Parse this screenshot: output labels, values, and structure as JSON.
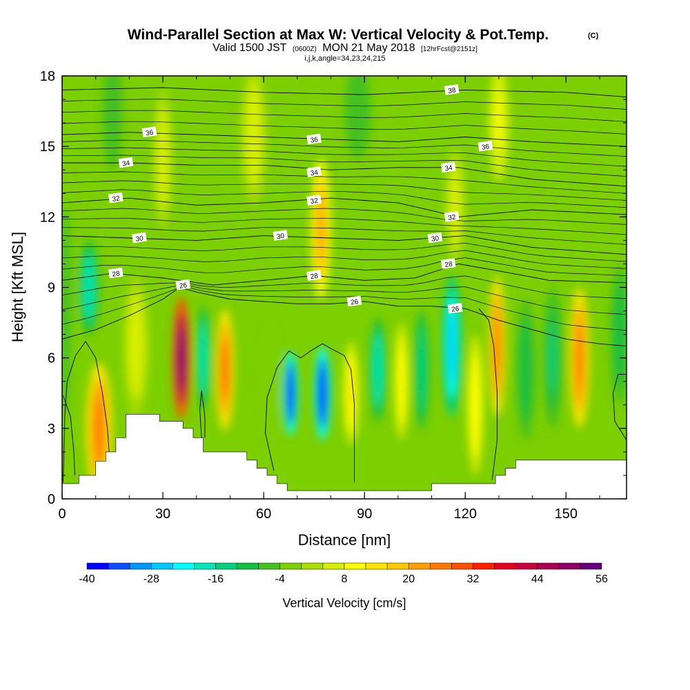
{
  "header": {
    "title_main": "Wind-Parallel Section at Max W: Vertical Velocity & Pot.Temp.",
    "title_mark": "(C)",
    "subtitle_valid": "Valid 1500 JST",
    "subtitle_z": "(0600Z)",
    "subtitle_date": "MON 21 May 2018",
    "subtitle_fcst": "[12hrFcst@2151z]",
    "indices": "i,j,k,angle=34,23,24,215"
  },
  "chart_data": {
    "type": "heatmap",
    "xlabel": "Distance [nm]",
    "ylabel": "Height [Kft MSL]",
    "xlim": [
      0,
      168
    ],
    "ylim": [
      0,
      18
    ],
    "xticks": [
      "0",
      "30",
      "60",
      "90",
      "120",
      "150"
    ],
    "yticks": [
      "0",
      "3",
      "6",
      "9",
      "12",
      "15",
      "18"
    ],
    "background_value": -2,
    "bands": [
      {
        "x": 1,
        "w": 3,
        "ycen": 8.0,
        "h": 6,
        "v": -6
      },
      {
        "x": 8,
        "w": 3,
        "ycen": 9.0,
        "h": 2.0,
        "v": -20
      },
      {
        "x": 11,
        "w": 4,
        "ycen": 3.0,
        "h": 2.8,
        "v": 24
      },
      {
        "x": 22,
        "w": 4,
        "ycen": 6.5,
        "h": 3,
        "v": 6
      },
      {
        "x": 35.5,
        "w": 2.6,
        "ycen": 6.0,
        "h": 2.6,
        "v": 56
      },
      {
        "x": 42,
        "w": 2.2,
        "ycen": 6.0,
        "h": 2.2,
        "v": -20
      },
      {
        "x": 48.5,
        "w": 2.8,
        "ycen": 5.5,
        "h": 2.6,
        "v": 28
      },
      {
        "x": 62,
        "w": 3,
        "ycen": 5.0,
        "h": 2.5,
        "v": -4
      },
      {
        "x": 68,
        "w": 2.2,
        "ycen": 4.5,
        "h": 1.8,
        "v": -38
      },
      {
        "x": 77.5,
        "w": 2.5,
        "ycen": 4.5,
        "h": 2.0,
        "v": -40
      },
      {
        "x": 77,
        "w": 3,
        "ycen": 11.5,
        "h": 3,
        "v": 20
      },
      {
        "x": 86,
        "w": 2.5,
        "ycen": 4.5,
        "h": 2.2,
        "v": 14
      },
      {
        "x": 94,
        "w": 2.5,
        "ycen": 5.5,
        "h": 2.2,
        "v": -20
      },
      {
        "x": 101,
        "w": 2.2,
        "ycen": 5.0,
        "h": 2.5,
        "v": 10
      },
      {
        "x": 107,
        "w": 2.2,
        "ycen": 5.5,
        "h": 2.5,
        "v": -16
      },
      {
        "x": 116,
        "w": 3,
        "ycen": 6.5,
        "h": 3,
        "v": -26
      },
      {
        "x": 117,
        "w": 3,
        "ycen": 12.5,
        "h": 2.5,
        "v": 6
      },
      {
        "x": 123,
        "w": 2.5,
        "ycen": 4.0,
        "h": 3,
        "v": 10
      },
      {
        "x": 129.5,
        "w": 2.5,
        "ycen": 6.5,
        "h": 3,
        "v": 24
      },
      {
        "x": 138,
        "w": 3,
        "ycen": 5.5,
        "h": 3,
        "v": -10
      },
      {
        "x": 146,
        "w": 3,
        "ycen": 6.0,
        "h": 3,
        "v": -14
      },
      {
        "x": 154,
        "w": 3,
        "ycen": 6.0,
        "h": 3,
        "v": 24
      },
      {
        "x": 166,
        "w": 3,
        "ycen": 7.0,
        "h": 3,
        "v": -12
      },
      {
        "x": 15,
        "w": 3,
        "ycen": 16.5,
        "h": 2.5,
        "v": -8
      },
      {
        "x": 30,
        "w": 3,
        "ycen": 14.5,
        "h": 3,
        "v": 6
      },
      {
        "x": 57,
        "w": 4,
        "ycen": 15.5,
        "h": 3,
        "v": 6
      },
      {
        "x": 130,
        "w": 3,
        "ycen": 16.0,
        "h": 2.5,
        "v": 8
      },
      {
        "x": 88,
        "w": 4,
        "ycen": 16.5,
        "h": 2,
        "v": -8
      }
    ],
    "terrain": [
      [
        0,
        0.65
      ],
      [
        5,
        0.65
      ],
      [
        5,
        1.0
      ],
      [
        10,
        1.0
      ],
      [
        10,
        1.6
      ],
      [
        13,
        1.6
      ],
      [
        13,
        2.0
      ],
      [
        16,
        2.0
      ],
      [
        16,
        2.6
      ],
      [
        19,
        2.6
      ],
      [
        19,
        3.6
      ],
      [
        29,
        3.6
      ],
      [
        29,
        3.3
      ],
      [
        36,
        3.3
      ],
      [
        36,
        3.0
      ],
      [
        39,
        3.0
      ],
      [
        39,
        2.6
      ],
      [
        42,
        2.6
      ],
      [
        42,
        2.0
      ],
      [
        55,
        2.0
      ],
      [
        55,
        1.65
      ],
      [
        58,
        1.65
      ],
      [
        58,
        1.3
      ],
      [
        61,
        1.3
      ],
      [
        61,
        1.0
      ],
      [
        64,
        1.0
      ],
      [
        64,
        0.65
      ],
      [
        67,
        0.65
      ],
      [
        67,
        0.35
      ],
      [
        110,
        0.35
      ],
      [
        110,
        0.65
      ],
      [
        129,
        0.65
      ],
      [
        129,
        1.0
      ],
      [
        132,
        1.0
      ],
      [
        132,
        1.3
      ],
      [
        135,
        1.3
      ],
      [
        135,
        1.65
      ],
      [
        168,
        1.65
      ]
    ],
    "isentropes": [
      {
        "label": "26",
        "pts": [
          [
            0,
            6.8
          ],
          [
            10,
            7.2
          ],
          [
            20,
            7.8
          ],
          [
            30,
            8.5
          ],
          [
            35,
            9.0
          ],
          [
            40,
            8.8
          ],
          [
            50,
            8.5
          ],
          [
            60,
            8.4
          ],
          [
            70,
            8.3
          ],
          [
            80,
            8.3
          ],
          [
            90,
            8.4
          ],
          [
            100,
            8.2
          ],
          [
            110,
            8.2
          ],
          [
            120,
            8.1
          ],
          [
            130,
            7.6
          ],
          [
            140,
            7.2
          ],
          [
            150,
            6.8
          ],
          [
            160,
            6.6
          ],
          [
            168,
            6.5
          ]
        ]
      },
      {
        "label": "28",
        "pts": [
          [
            0,
            9.3
          ],
          [
            15,
            9.6
          ],
          [
            30,
            9.4
          ],
          [
            45,
            9.1
          ],
          [
            60,
            9.3
          ],
          [
            75,
            9.5
          ],
          [
            90,
            9.3
          ],
          [
            105,
            9.4
          ],
          [
            118,
            10.0
          ],
          [
            130,
            9.7
          ],
          [
            145,
            9.3
          ],
          [
            168,
            9.2
          ]
        ]
      },
      {
        "label": "30",
        "pts": [
          [
            0,
            11.2
          ],
          [
            20,
            11.1
          ],
          [
            40,
            11.0
          ],
          [
            60,
            11.2
          ],
          [
            80,
            11.1
          ],
          [
            100,
            11.0
          ],
          [
            120,
            11.2
          ],
          [
            140,
            10.7
          ],
          [
            168,
            10.4
          ]
        ]
      },
      {
        "label": "32",
        "pts": [
          [
            0,
            12.6
          ],
          [
            20,
            12.8
          ],
          [
            40,
            12.5
          ],
          [
            60,
            12.6
          ],
          [
            80,
            12.8
          ],
          [
            100,
            12.6
          ],
          [
            118,
            12.0
          ],
          [
            140,
            12.3
          ],
          [
            168,
            12.1
          ]
        ]
      },
      {
        "label": "34",
        "pts": [
          [
            0,
            14.3
          ],
          [
            20,
            14.3
          ],
          [
            40,
            14.2
          ],
          [
            60,
            14.2
          ],
          [
            80,
            14.0
          ],
          [
            100,
            14.1
          ],
          [
            118,
            14.1
          ],
          [
            140,
            13.6
          ],
          [
            168,
            13.3
          ]
        ]
      },
      {
        "label": "36",
        "pts": [
          [
            0,
            15.5
          ],
          [
            20,
            15.6
          ],
          [
            40,
            15.5
          ],
          [
            60,
            15.4
          ],
          [
            80,
            15.3
          ],
          [
            100,
            15.2
          ],
          [
            120,
            15.4
          ],
          [
            140,
            15.2
          ],
          [
            168,
            15.0
          ]
        ]
      },
      {
        "label": "38",
        "pts": [
          [
            0,
            17.4
          ],
          [
            30,
            17.5
          ],
          [
            60,
            17.3
          ],
          [
            90,
            17.2
          ],
          [
            120,
            17.4
          ],
          [
            150,
            17.3
          ],
          [
            168,
            17.1
          ]
        ]
      }
    ],
    "isentrope_labels": [
      {
        "label": "26",
        "x": 36,
        "y": 9.1
      },
      {
        "label": "26",
        "x": 87,
        "y": 8.4
      },
      {
        "label": "26",
        "x": 117,
        "y": 8.1
      },
      {
        "label": "28",
        "x": 16,
        "y": 9.6
      },
      {
        "label": "28",
        "x": 75,
        "y": 9.5
      },
      {
        "label": "28",
        "x": 115,
        "y": 10.0
      },
      {
        "label": "30",
        "x": 23,
        "y": 11.1
      },
      {
        "label": "30",
        "x": 65,
        "y": 11.2
      },
      {
        "label": "30",
        "x": 111,
        "y": 11.1
      },
      {
        "label": "32",
        "x": 16,
        "y": 12.8
      },
      {
        "label": "32",
        "x": 75,
        "y": 12.7
      },
      {
        "label": "32",
        "x": 116,
        "y": 12.0
      },
      {
        "label": "34",
        "x": 19,
        "y": 14.3
      },
      {
        "label": "34",
        "x": 75,
        "y": 13.9
      },
      {
        "label": "34",
        "x": 115,
        "y": 14.1
      },
      {
        "label": "36",
        "x": 26,
        "y": 15.6
      },
      {
        "label": "36",
        "x": 75,
        "y": 15.3
      },
      {
        "label": "36",
        "x": 126,
        "y": 15.0
      },
      {
        "label": "38",
        "x": 116,
        "y": 17.4
      }
    ],
    "w_zero_contours": [
      [
        [
          0.3,
          0.7
        ],
        [
          0.8,
          3.5
        ],
        [
          1.5,
          5.0
        ],
        [
          4,
          6.1
        ],
        [
          7,
          6.7
        ],
        [
          10,
          6.0
        ],
        [
          12,
          4.5
        ],
        [
          13.5,
          3.0
        ],
        [
          14,
          2.0
        ]
      ],
      [
        [
          0.3,
          4.4
        ],
        [
          2.5,
          3.5
        ],
        [
          3.5,
          2.0
        ],
        [
          3.8,
          1.0
        ]
      ],
      [
        [
          41.5,
          2.6
        ],
        [
          41.0,
          3.8
        ],
        [
          41.5,
          4.6
        ],
        [
          42.5,
          3.5
        ],
        [
          42.5,
          2.6
        ]
      ],
      [
        [
          63,
          1.2
        ],
        [
          60.5,
          2.8
        ],
        [
          61,
          4.3
        ],
        [
          64,
          5.6
        ],
        [
          67.5,
          6.3
        ],
        [
          71,
          6.0
        ],
        [
          74,
          6.3
        ],
        [
          77.5,
          6.6
        ],
        [
          80,
          6.4
        ],
        [
          84,
          6.1
        ],
        [
          86,
          5.5
        ],
        [
          87,
          4.0
        ],
        [
          87,
          2.0
        ],
        [
          87,
          0.7
        ]
      ],
      [
        [
          128,
          0.8
        ],
        [
          129.5,
          2.5
        ],
        [
          129.5,
          4.5
        ],
        [
          128.5,
          6.5
        ],
        [
          127,
          7.6
        ],
        [
          124,
          8.1
        ]
      ],
      [
        [
          168,
          2.5
        ],
        [
          164.5,
          3.3
        ],
        [
          164,
          4.5
        ],
        [
          165.5,
          5.3
        ],
        [
          168,
          5.3
        ]
      ]
    ],
    "colorbar": {
      "label": "Vertical Velocity [cm/s]",
      "min": -40,
      "max": 56,
      "step": 4,
      "tick_labels": [
        "-40",
        "-28",
        "-16",
        "-4",
        "8",
        "20",
        "32",
        "44",
        "56"
      ],
      "colors": [
        "#0000ff",
        "#0a4cff",
        "#0096ff",
        "#00c8ff",
        "#00ffff",
        "#00e6b4",
        "#00d080",
        "#14c040",
        "#44c020",
        "#7ccf00",
        "#aadd00",
        "#d8ee00",
        "#ffff00",
        "#ffe600",
        "#ffc800",
        "#ffa000",
        "#ff7800",
        "#ff5000",
        "#ff1e00",
        "#e60020",
        "#c8003c",
        "#aa0050",
        "#8c0064",
        "#640078"
      ]
    }
  }
}
